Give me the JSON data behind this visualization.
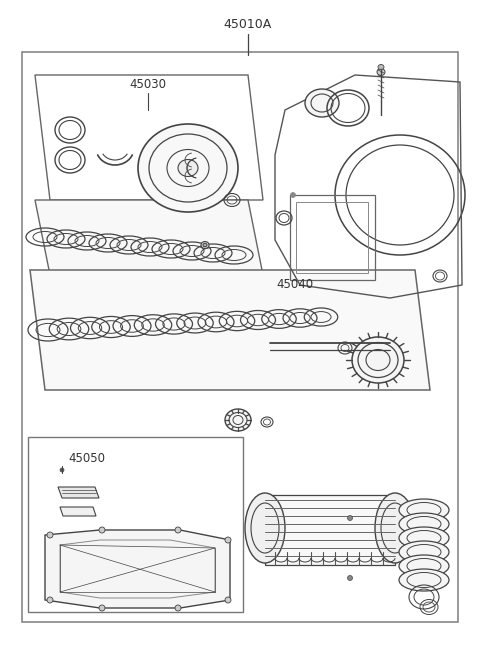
{
  "bg_color": "#ffffff",
  "line_color": "#444444",
  "text_color": "#333333",
  "labels": {
    "main": "45010A",
    "sub1": "45030",
    "sub2": "45040",
    "sub3": "45050"
  },
  "fig_width": 4.8,
  "fig_height": 6.55,
  "dpi": 100
}
